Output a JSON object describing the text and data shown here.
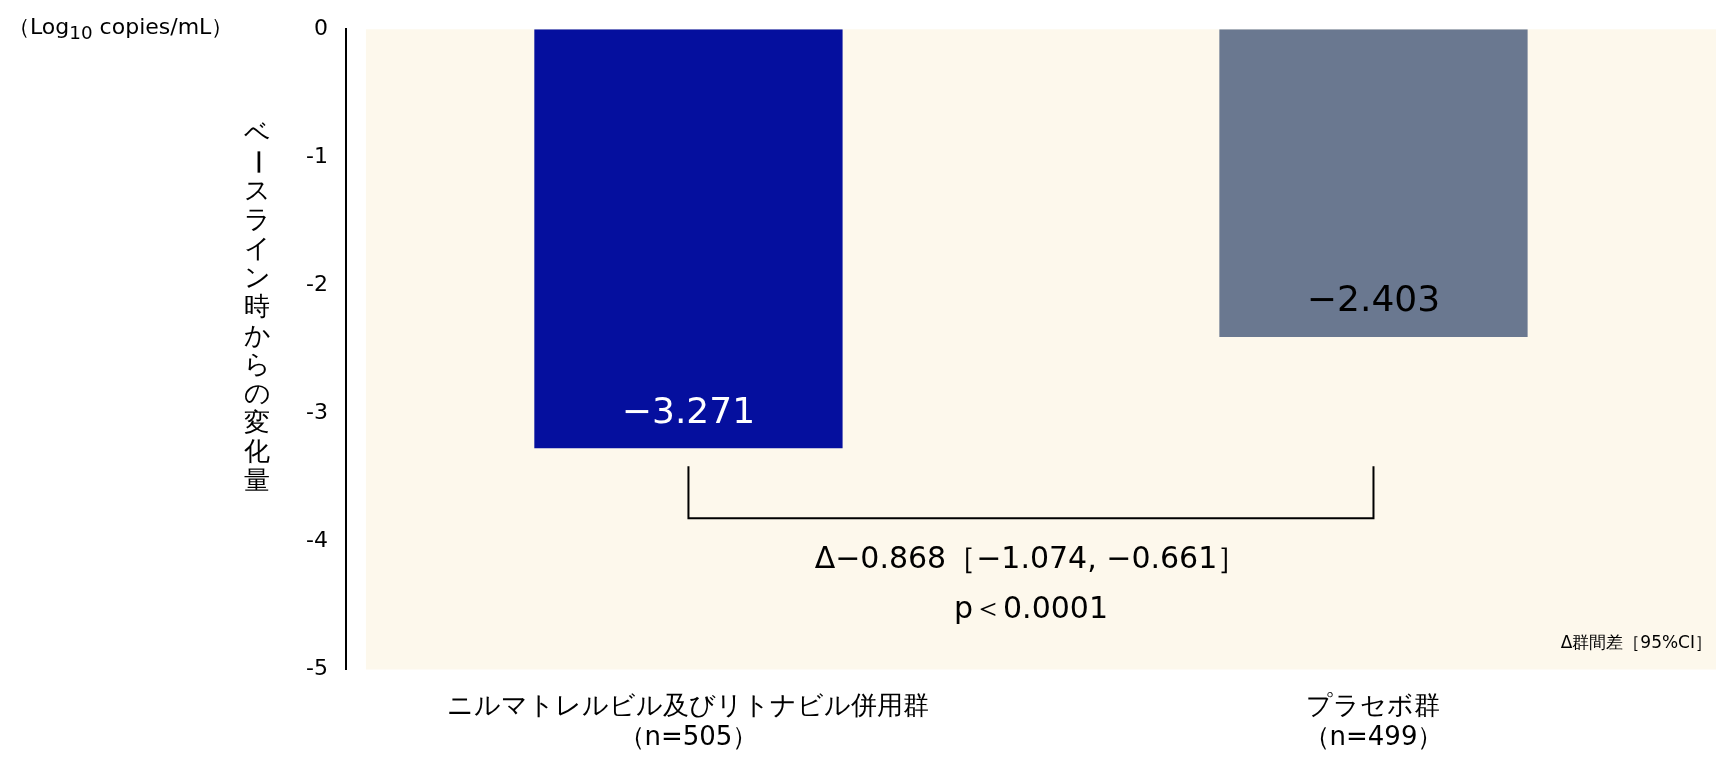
{
  "chart_data": {
    "type": "bar",
    "ylabel": "ベースライン時からの変化量",
    "subtitle": "（Log$_{10}$ copies/mL）",
    "categories": [
      "ニルマトレルビル及びリトナビル併用群（n=505）",
      "プラセボ群（n=499）"
    ],
    "values": [
      -3.271,
      -2.403
    ],
    "colors": [
      "#050f9e",
      "#6a7890"
    ],
    "value_labels": [
      "−3.271",
      "−2.403"
    ],
    "ylim": [
      -5,
      0
    ],
    "yticks": [
      0,
      -1,
      -2,
      -3,
      -4,
      -5
    ],
    "grid": false,
    "legend": false,
    "annotations": [
      "Δ−0.868［−1.074, −0.661］",
      "p＜0.0001",
      "Δ群間差［95%CI］"
    ]
  }
}
